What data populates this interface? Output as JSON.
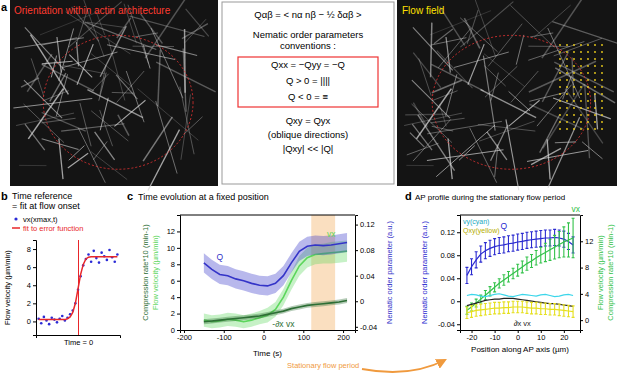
{
  "panel_labels": [
    "a",
    "b",
    "c",
    "d"
  ],
  "panel_a": {
    "left_image_title": "Orientation within actin architecture",
    "right_image_title": "Flow field",
    "box_lines": [
      "Qαβ = < nα nβ − ½ δαβ >",
      "Nematic order parameters",
      "conventions :",
      "Qxx = −Qyy = −Q",
      "Q > 0 = ||||",
      "Q < 0 = ≡",
      "Qxy = Qyx",
      "(oblique directions)",
      "|Qxy| << |Q|"
    ]
  },
  "chart_data": [
    {
      "type": "scatter",
      "title": [
        "Time reference",
        "= fit at flow onset"
      ],
      "ylabel": "Flow velocity (µm/min)",
      "x": [
        -60,
        -56,
        -52,
        -48,
        -44,
        -40,
        -36,
        -32,
        -28,
        -24,
        -20,
        -16,
        -12,
        -8,
        -4,
        0,
        4,
        8,
        12,
        16,
        20,
        24,
        28,
        32,
        36,
        40,
        44,
        48,
        52,
        56,
        60
      ],
      "series": [
        {
          "name": "vx(xmax,t)",
          "type": "scatter",
          "marker": "dot",
          "color": "#2b2bd6",
          "values": [
            0.3,
            -0.2,
            0.5,
            0.1,
            -0.3,
            0.4,
            0.2,
            -0.1,
            0.3,
            0.6,
            0.1,
            0.4,
            0.8,
            1.2,
            2.0,
            3.5,
            5.0,
            6.2,
            6.9,
            7.4,
            6.6,
            7.8,
            7.0,
            6.5,
            7.6,
            7.2,
            6.8,
            7.9,
            7.1,
            6.6,
            7.4
          ]
        },
        {
          "name": "fit to error function",
          "type": "line",
          "color": "#e8262a",
          "values": [
            0.2,
            0.2,
            0.2,
            0.2,
            0.2,
            0.2,
            0.2,
            0.2,
            0.2,
            0.2,
            0.2,
            0.3,
            0.5,
            1.0,
            2.0,
            3.6,
            5.2,
            6.3,
            6.9,
            7.1,
            7.15,
            7.15,
            7.15,
            7.15,
            7.15,
            7.15,
            7.15,
            7.15,
            7.15,
            7.15,
            7.15
          ]
        }
      ],
      "xlim": [
        -64,
        64
      ],
      "xticks": [
        {
          "value": 0,
          "label": "Time = 0"
        }
      ],
      "ylim": [
        -1.5,
        9
      ],
      "yticks": [
        0,
        2,
        4,
        6,
        8
      ]
    },
    {
      "type": "line",
      "title": "Time evolution at a fixed position",
      "xlabel": "Time (s)",
      "ylabel": [
        "Compression rate*10 (min-1)",
        "Flow velocity (µm/min)"
      ],
      "y2label": "Nematic order parameter (a.u.)",
      "x": [
        -150,
        -130,
        -110,
        -90,
        -70,
        -50,
        -30,
        -10,
        10,
        30,
        50,
        70,
        90,
        110,
        130,
        150,
        170,
        190,
        210
      ],
      "series": [
        {
          "name": "vx",
          "color": "#5cd65c",
          "values": [
            1.2,
            1.0,
            1.1,
            1.3,
            1.2,
            1.0,
            1.2,
            1.5,
            1.8,
            2.5,
            4.0,
            6.0,
            7.8,
            8.8,
            9.2,
            9.3,
            9.4,
            9.5,
            9.6
          ],
          "error": [
            0.8,
            0.8,
            0.8,
            0.8,
            0.8,
            0.8,
            0.8,
            0.8,
            0.9,
            0.9,
            1.0,
            1.1,
            1.2,
            1.2,
            1.2,
            1.2,
            1.3,
            1.3,
            1.3
          ]
        },
        {
          "name": "Q",
          "color": "#3434c8",
          "axis": "y2",
          "values": [
            0.06,
            0.05,
            0.042,
            0.04,
            0.035,
            0.032,
            0.028,
            0.025,
            0.024,
            0.028,
            0.04,
            0.06,
            0.078,
            0.086,
            0.088,
            0.087,
            0.088,
            0.09,
            0.092
          ],
          "error": [
            0.015,
            0.015,
            0.015,
            0.015,
            0.015,
            0.015,
            0.015,
            0.015,
            0.015,
            0.015,
            0.015,
            0.015,
            0.015,
            0.015,
            0.015,
            0.015,
            0.015,
            0.015,
            0.015
          ]
        },
        {
          "name": "-∂x vx",
          "color": "#2d6e35",
          "values": [
            1.0,
            1.1,
            1.2,
            1.3,
            1.4,
            1.5,
            1.6,
            1.7,
            1.9,
            2.1,
            2.3,
            2.6,
            2.8,
            3.0,
            3.1,
            3.2,
            3.3,
            3.4,
            3.6
          ],
          "error": [
            0.3,
            0.3,
            0.3,
            0.3,
            0.3,
            0.3,
            0.3,
            0.3,
            0.3,
            0.3,
            0.3,
            0.3,
            0.3,
            0.3,
            0.3,
            0.3,
            0.3,
            0.3,
            0.3
          ]
        }
      ],
      "annotations": [
        {
          "text": "Stationary flow period",
          "x": [
            120,
            180
          ],
          "color": "#f5b874"
        }
      ],
      "xlim": [
        -210,
        230
      ],
      "xticks": [
        -200,
        -100,
        0,
        100,
        200
      ],
      "ylim": [
        0,
        14
      ],
      "yticks": [
        0,
        2,
        4,
        6,
        8,
        10,
        12
      ],
      "y2lim": [
        -0.045,
        0.135
      ],
      "y2ticks": [
        -0.04,
        0,
        0.04,
        0.08,
        0.12
      ]
    },
    {
      "type": "line",
      "title": "AP profile during the stationary flow period",
      "xlabel": "Position along AP axis (µm)",
      "ylabel": "Nematic order parameter (a.u.)",
      "y2label": [
        "Flow velocity (µm/min)",
        "Compression rate*10 (min-1)"
      ],
      "x": [
        -22,
        -20,
        -18,
        -16,
        -14,
        -12,
        -10,
        -8,
        -6,
        -4,
        -2,
        0,
        2,
        4,
        6,
        8,
        10,
        12,
        14,
        16,
        18,
        20,
        22,
        24
      ],
      "series": [
        {
          "name": "Q",
          "color": "#2a2ad0",
          "values": [
            0.045,
            0.06,
            0.072,
            0.082,
            0.088,
            0.092,
            0.095,
            0.097,
            0.098,
            0.1,
            0.101,
            0.103,
            0.104,
            0.106,
            0.107,
            0.108,
            0.109,
            0.11,
            0.11,
            0.111,
            0.11,
            0.108,
            0.104,
            0.098
          ],
          "error": [
            0.014,
            0.014,
            0.014,
            0.014,
            0.014,
            0.014,
            0.014,
            0.014,
            0.014,
            0.014,
            0.014,
            0.014,
            0.014,
            0.014,
            0.014,
            0.014,
            0.014,
            0.014,
            0.014,
            0.014,
            0.014,
            0.014,
            0.014,
            0.014
          ]
        },
        {
          "name": "vx",
          "color": "#33c24a",
          "axis": "y2",
          "values": [
            1.5,
            2.0,
            2.6,
            3.2,
            3.8,
            4.4,
            5.0,
            5.6,
            6.1,
            6.6,
            7.1,
            7.6,
            8.1,
            8.6,
            9.0,
            9.5,
            9.9,
            10.3,
            10.7,
            11.1,
            11.5,
            11.9,
            12.2,
            12.5
          ],
          "error": [
            0.6,
            0.6,
            0.6,
            0.6,
            0.7,
            0.7,
            0.7,
            0.7,
            0.8,
            0.8,
            0.8,
            0.9,
            0.9,
            1.0,
            1.0,
            1.1,
            1.2,
            1.4,
            1.6,
            1.8,
            2.0,
            2.3,
            2.6,
            3.0
          ]
        },
        {
          "name": "∂x vx",
          "color": "#222222",
          "axis": "y2",
          "values": [
            2.2,
            2.4,
            2.6,
            2.8,
            3.0,
            3.1,
            3.2,
            3.2,
            3.3,
            3.3,
            3.3,
            3.2,
            3.1,
            3.0,
            2.9,
            2.8,
            2.7,
            2.6,
            2.5,
            2.5,
            2.4,
            2.3,
            2.2,
            2.1
          ]
        },
        {
          "name": "vy(cyan)",
          "color": "#3cd6ea",
          "values": [
            0.01,
            0.012,
            0.011,
            0.009,
            0.008,
            0.01,
            0.012,
            0.013,
            0.011,
            0.009,
            0.008,
            0.01,
            0.012,
            0.011,
            0.01,
            0.009,
            0.011,
            0.012,
            0.01,
            0.008,
            0.009,
            0.011,
            0.012,
            0.01
          ]
        },
        {
          "name": "Qxy(yellow)",
          "color": "#e6e020",
          "values": [
            -0.02,
            -0.018,
            -0.016,
            -0.015,
            -0.014,
            -0.013,
            -0.012,
            -0.012,
            -0.011,
            -0.011,
            -0.01,
            -0.01,
            -0.01,
            -0.011,
            -0.012,
            -0.012,
            -0.013,
            -0.013,
            -0.014,
            -0.014,
            -0.015,
            -0.016,
            -0.017,
            -0.018
          ],
          "error": [
            0.01,
            0.01,
            0.01,
            0.01,
            0.01,
            0.01,
            0.01,
            0.01,
            0.01,
            0.01,
            0.01,
            0.01,
            0.01,
            0.01,
            0.01,
            0.01,
            0.01,
            0.01,
            0.01,
            0.01,
            0.01,
            0.01,
            0.01,
            0.01
          ]
        }
      ],
      "xlim": [
        -25,
        27
      ],
      "xticks": [
        -20,
        -10,
        0,
        10,
        20
      ],
      "ylim": [
        -0.05,
        0.15
      ],
      "yticks": [
        -0.04,
        0,
        0.04,
        0.08,
        0.12
      ],
      "y2lim": [
        -1.5,
        16
      ],
      "y2ticks": [
        0,
        4,
        8,
        12
      ]
    }
  ]
}
